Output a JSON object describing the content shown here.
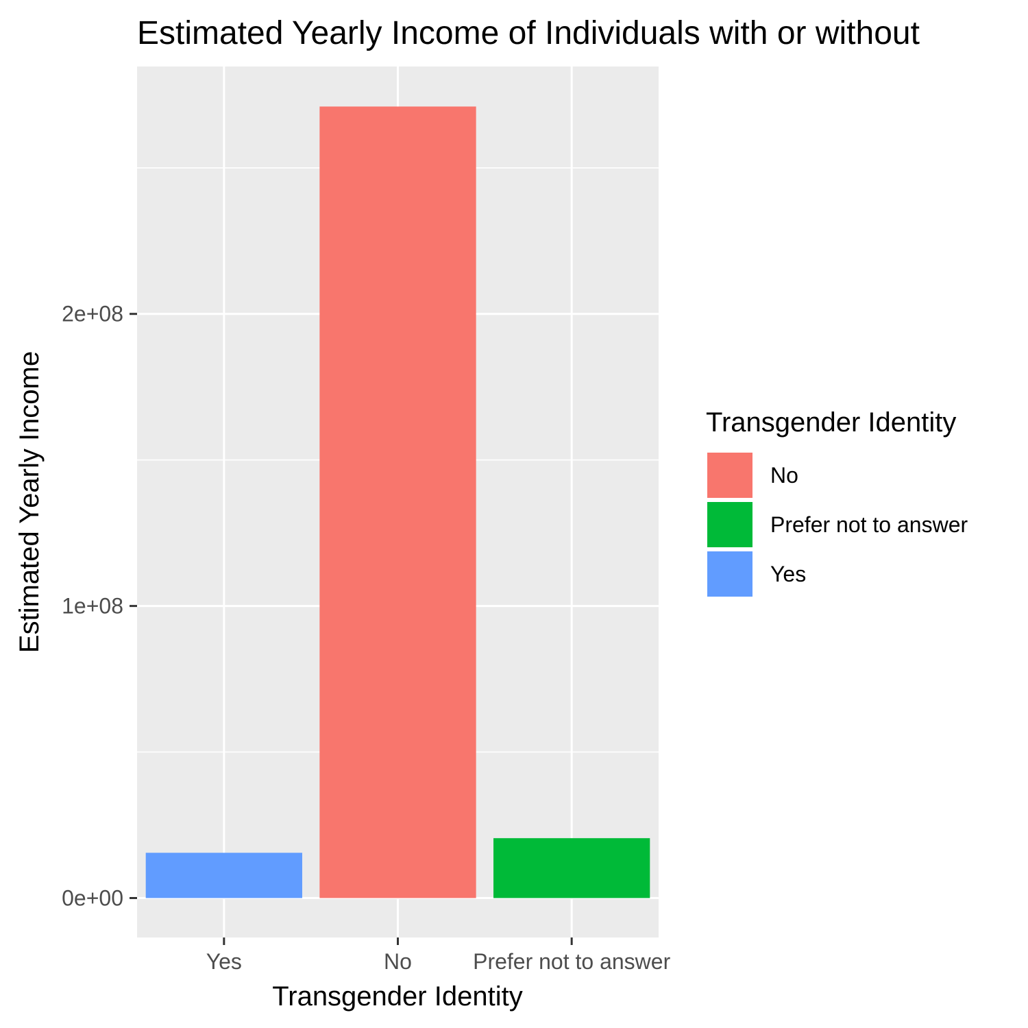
{
  "chart_data": {
    "type": "bar",
    "title": "Estimated Yearly Income of Individuals with or without",
    "xlabel": "Transgender Identity",
    "ylabel": "Estimated Yearly Income",
    "categories": [
      "Yes",
      "No",
      "Prefer not to answer"
    ],
    "values": [
      15500000,
      271000000,
      20500000
    ],
    "bar_colors": [
      "#619CFF",
      "#F8766D",
      "#00BA38"
    ],
    "ylim": [
      -13500000,
      284700000
    ],
    "y_ticks": [
      {
        "value": 0,
        "label": "0e+00"
      },
      {
        "value": 100000000,
        "label": "1e+08"
      },
      {
        "value": 200000000,
        "label": "2e+08"
      }
    ],
    "y_minor_ticks": [
      50000000,
      150000000,
      250000000
    ],
    "grid": true,
    "panel_background": "#EBEBEB",
    "grid_color": "#FFFFFF",
    "legend": {
      "title": "Transgender Identity",
      "position": "right",
      "items": [
        {
          "label": "No",
          "color": "#F8766D"
        },
        {
          "label": "Prefer not to answer",
          "color": "#00BA38"
        },
        {
          "label": "Yes",
          "color": "#619CFF"
        }
      ]
    }
  }
}
